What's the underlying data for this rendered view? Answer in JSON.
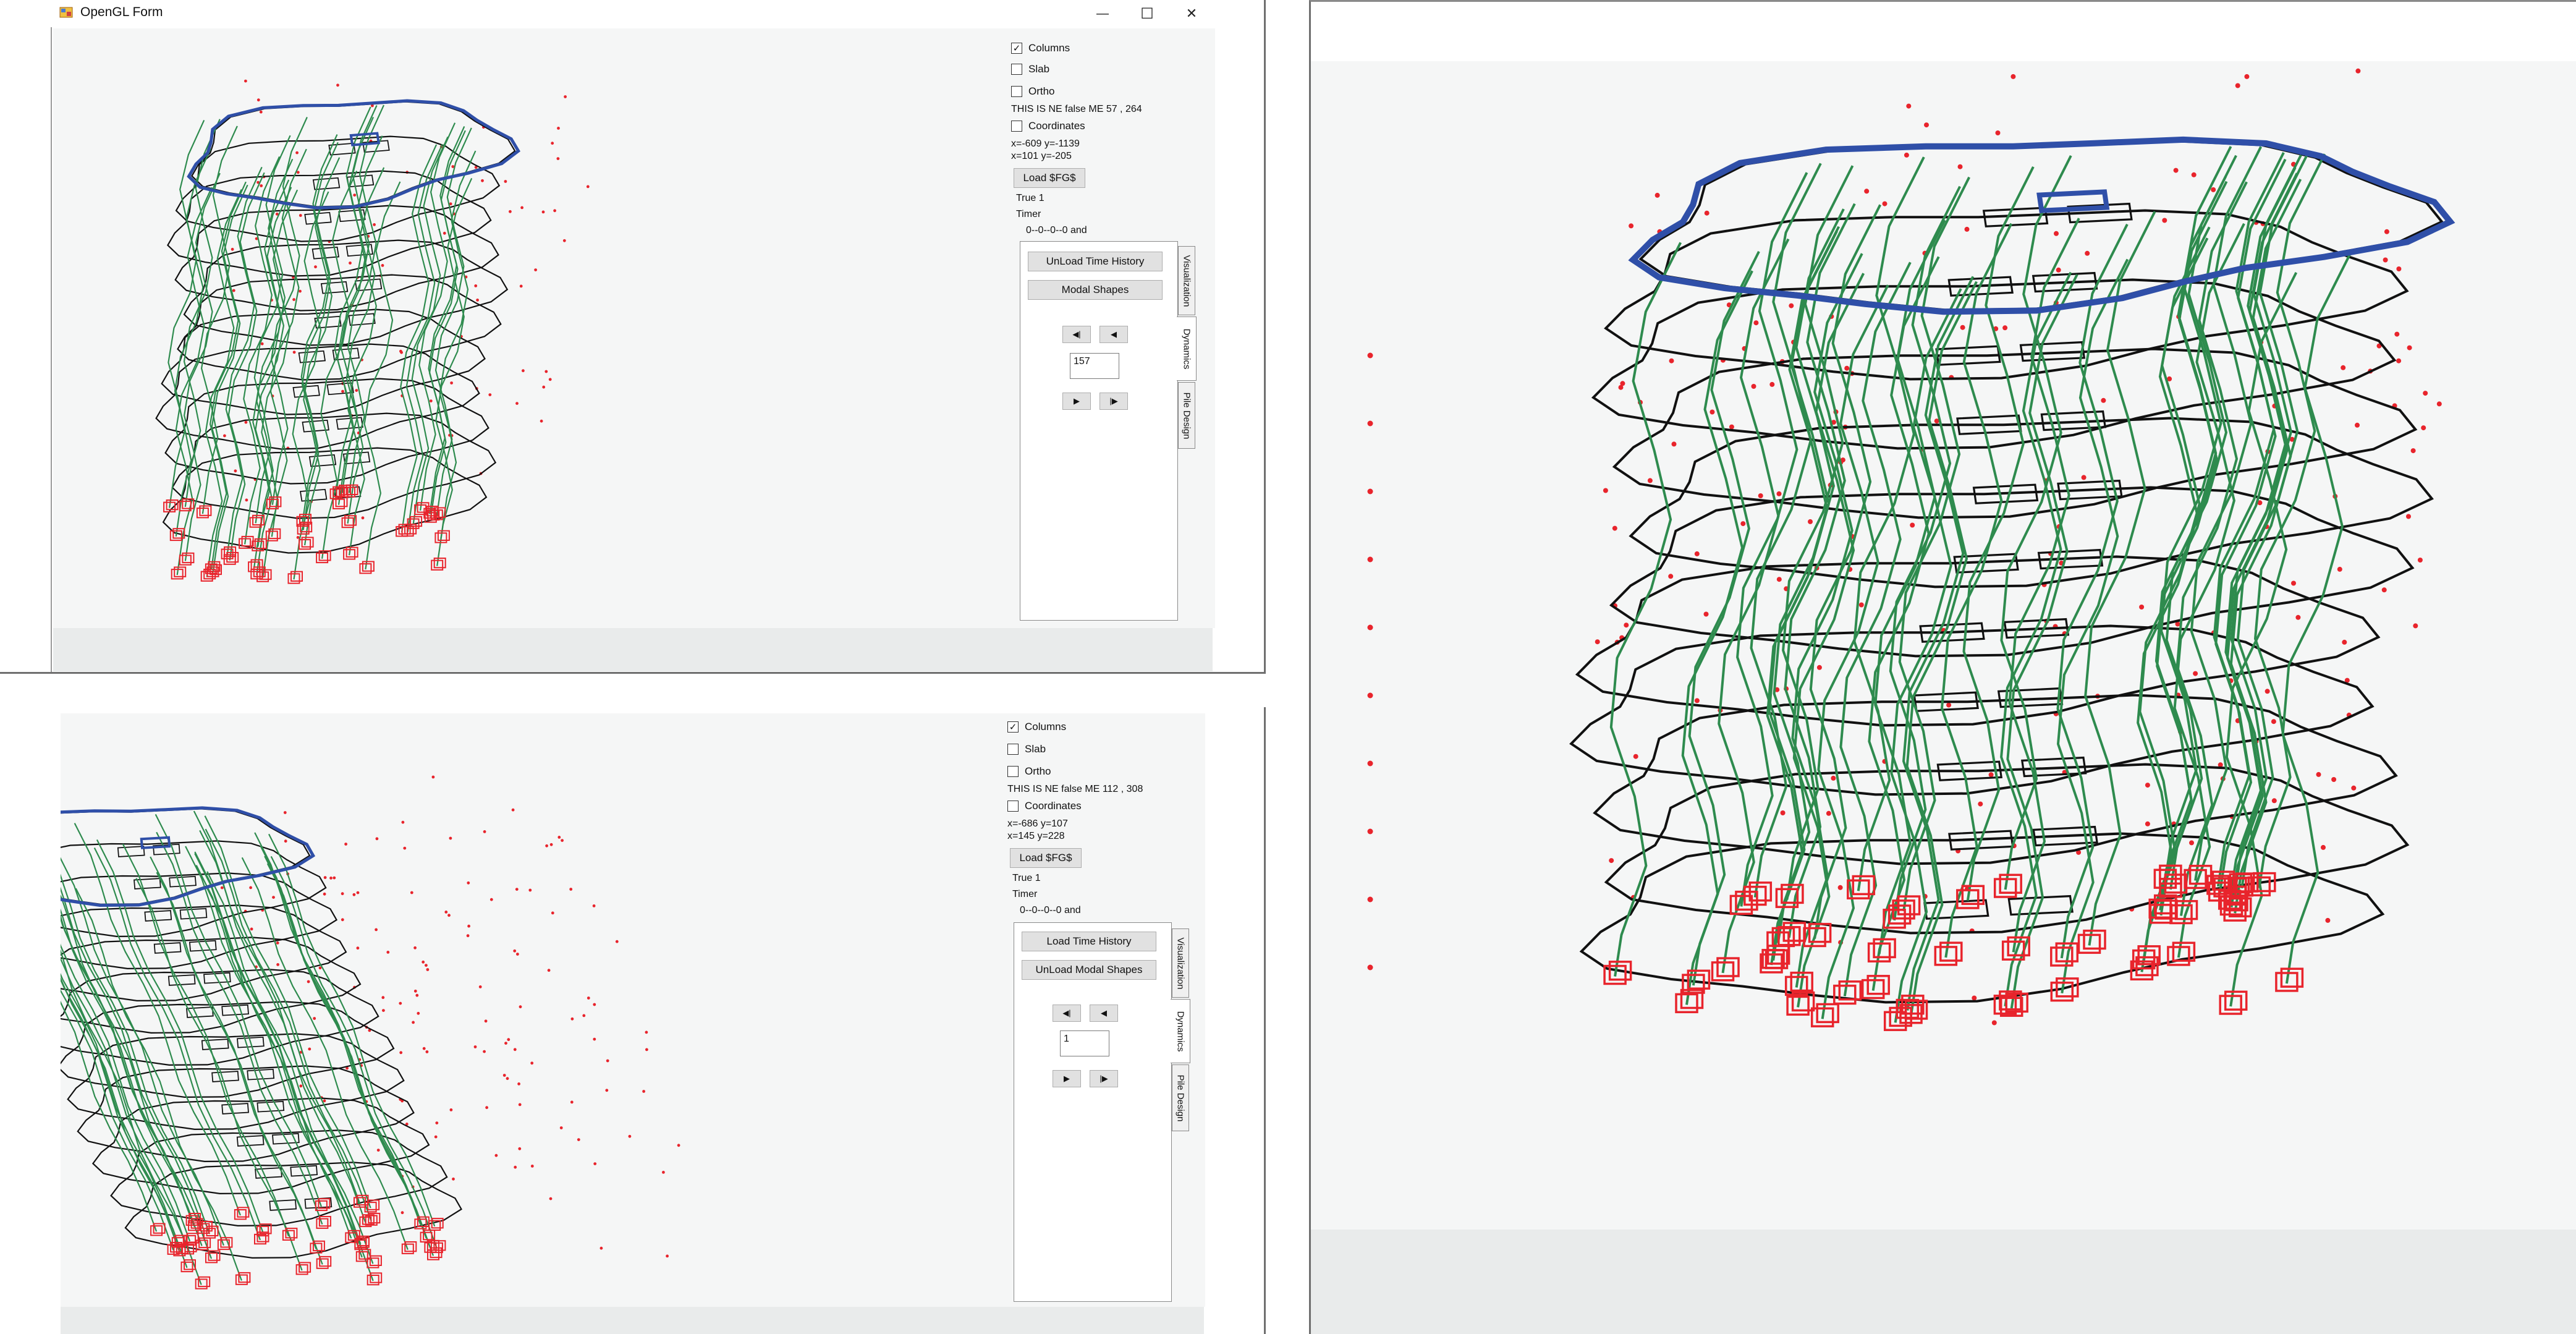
{
  "window_top": {
    "title": "OpenGL Form",
    "controls": {
      "columns_label": "Columns",
      "columns_checked": true,
      "slab_label": "Slab",
      "slab_checked": false,
      "ortho_label": "Ortho",
      "ortho_checked": false,
      "status_line": "THIS IS NE false   ME   57 , 264",
      "coordinates_label": "Coordinates",
      "coordinates_checked": false,
      "coord_line_1": "x=-609 y=-1139",
      "coord_line_2": "x=101 y=-205",
      "load_button": "Load $FG$",
      "true_line": "True 1",
      "timer_label": "Timer",
      "timer_value": "0--0--0--0 and",
      "time_history_button": "UnLoad Time History",
      "modal_shapes_button": "Modal Shapes",
      "frame_value": "157",
      "tabs": [
        "Visualization",
        "Dynamics",
        "Pile Design"
      ],
      "active_tab": "Dynamics"
    }
  },
  "window_bottom": {
    "controls": {
      "columns_label": "Columns",
      "columns_checked": true,
      "slab_label": "Slab",
      "slab_checked": false,
      "ortho_label": "Ortho",
      "ortho_checked": false,
      "status_line": "THIS IS NE false   ME   112 , 308",
      "coordinates_label": "Coordinates",
      "coordinates_checked": false,
      "coord_line_1": "x=-686 y=107",
      "coord_line_2": "x=145 y=228",
      "load_button": "Load $FG$",
      "true_line": "True 1",
      "timer_label": "Timer",
      "timer_value": "0--0--0--0 and",
      "time_history_button": "Load Time History",
      "modal_shapes_button": "UnLoad Modal Shapes",
      "frame_value": "1",
      "tabs": [
        "Visualization",
        "Dynamics",
        "Pile Design"
      ],
      "active_tab": "Dynamics"
    }
  },
  "nav_glyphs": {
    "first": "◀|",
    "prev": "◀",
    "play": "▶",
    "last": "|▶"
  },
  "caption_glyphs": {
    "minimize": "—",
    "maximize": "☐",
    "close": "✕"
  },
  "colors": {
    "roof_outline": "#2f4fa8",
    "columns": "#2e8b4e",
    "floor_outline": "#111111",
    "piles_and_nodes": "#e8242c",
    "viewport_bg": "#f5f6f6"
  },
  "icons": {
    "app_icon": "opengl-form-icon"
  }
}
